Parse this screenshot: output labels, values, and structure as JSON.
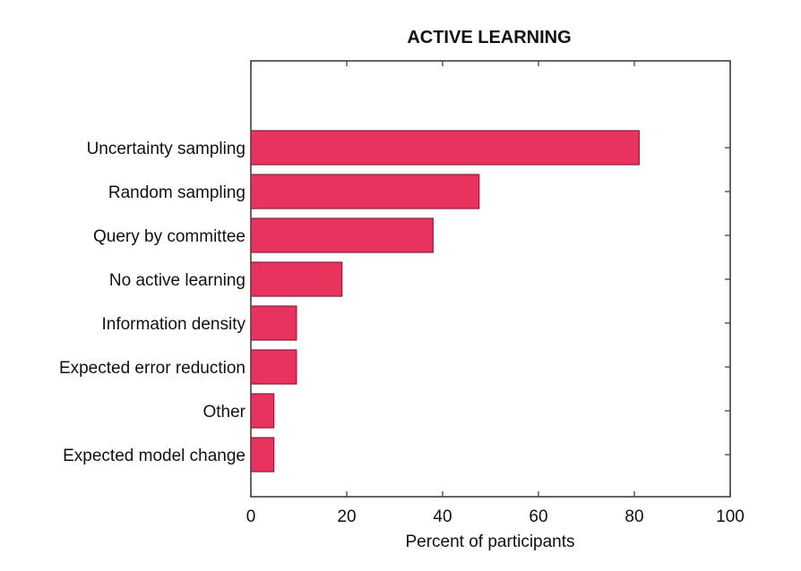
{
  "chart_data": {
    "type": "bar",
    "orientation": "horizontal",
    "title": "ACTIVE LEARNING",
    "xlabel": "Percent of participants",
    "ylabel": "",
    "xlim": [
      0,
      100
    ],
    "xticks": [
      0,
      20,
      40,
      60,
      80,
      100
    ],
    "xtick_labels": [
      "0",
      "20",
      "40",
      "60",
      "80",
      "100"
    ],
    "categories": [
      "Uncertainty sampling",
      "Random sampling",
      "Query by committee",
      "No active learning",
      "Information density",
      "Expected error reduction",
      "Other",
      "Expected model change"
    ],
    "values": [
      81,
      47.6,
      38,
      19,
      9.5,
      9.5,
      4.8,
      4.8
    ],
    "bar_color": "#e8335e",
    "bar_edge_color": "#8e1a3a",
    "grid": false,
    "legend": "none"
  }
}
